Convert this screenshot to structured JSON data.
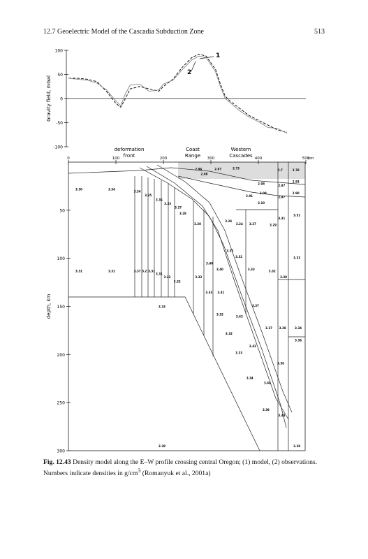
{
  "header": {
    "title": "12.7 Geoelectric Model of the Cascadia Subduction Zone",
    "page": "513"
  },
  "chart_data": [
    {
      "type": "line",
      "ylabel": "Gravity field, mGal",
      "xlim": [
        0,
        500
      ],
      "ylim": [
        -100,
        100
      ],
      "yticks": [
        -100,
        -50,
        0,
        50,
        100
      ],
      "x": [
        0,
        20,
        40,
        60,
        80,
        100,
        110,
        120,
        130,
        150,
        170,
        190,
        200,
        220,
        240,
        260,
        275,
        290,
        310,
        320,
        330,
        340,
        360,
        380,
        400,
        420,
        440,
        460
      ],
      "series": [
        {
          "name": "1",
          "color": "#111111",
          "dash": true,
          "values": [
            42,
            42,
            40,
            35,
            15,
            -10,
            -18,
            0,
            20,
            25,
            20,
            15,
            25,
            40,
            65,
            85,
            92,
            88,
            60,
            30,
            5,
            -5,
            -20,
            -35,
            -45,
            -55,
            -65,
            -70
          ]
        },
        {
          "name": "2",
          "color": "#888888",
          "dash": false,
          "values": [
            42,
            40,
            38,
            32,
            18,
            -5,
            -15,
            10,
            28,
            30,
            15,
            18,
            30,
            38,
            60,
            80,
            88,
            85,
            55,
            25,
            0,
            -8,
            -25,
            -38,
            -48,
            -60,
            -62,
            -72
          ]
        }
      ]
    },
    {
      "type": "diagram",
      "ylabel": "depth, km",
      "xunit": "km",
      "xlim": [
        0,
        500
      ],
      "ylim": [
        0,
        300
      ],
      "xticks": [
        0,
        100,
        200,
        300,
        400,
        500
      ],
      "yticks": [
        50,
        100,
        150,
        200,
        250,
        300
      ],
      "annotations": [
        [
          "deformation",
          "front"
        ],
        [
          "Coast",
          "Range"
        ],
        [
          "Western",
          "Cascades"
        ]
      ],
      "densities": [
        "3.30",
        "3.34",
        "3.31",
        "3.31",
        "3.33",
        "3.38",
        "3.38",
        "3.31",
        "3.33",
        "3.34",
        "3.36",
        "2.78",
        "2.83",
        "2.90",
        "2.7",
        "2.87",
        "2.97",
        "2.98",
        "3.09",
        "3.10",
        "3.31",
        "3.29",
        "3.27",
        "3.24",
        "3.24",
        "3.28",
        "3.40",
        "3.32",
        "3.32",
        "3.33",
        "3.32",
        "3.30",
        "3.40",
        "3.32",
        "3.33",
        "3.41",
        "3.37",
        "3.42",
        "3.32",
        "3.32",
        "3.37",
        "3.38",
        "3.43",
        "3.33",
        "3.36",
        "3.34",
        "3.44",
        "3.39",
        "3.44",
        "2.96",
        "2.87",
        "2.73",
        "2.88",
        "2.91",
        "3.34",
        "3.35",
        "3.36",
        "3.33",
        "3.27",
        "3.28",
        "3.37",
        "3.2",
        "3.31",
        "3.31",
        "3.32",
        "3.32"
      ]
    }
  ],
  "caption": {
    "label": "Fig. 12.43",
    "text": " Density model along the E–W profile crossing central Oregon; (1) model, (2) observations. Numbers indicate densities in g/cm",
    "sup": "3",
    "end": " (Romanyuk et al., 2001a)"
  }
}
